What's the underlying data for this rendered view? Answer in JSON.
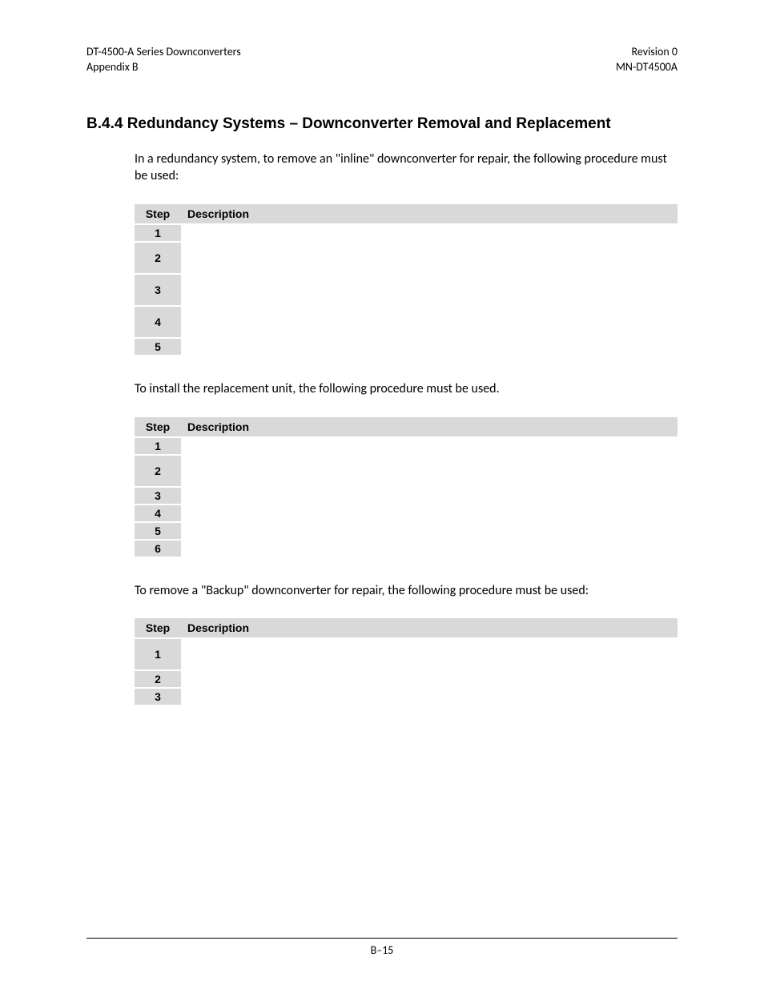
{
  "header": {
    "left_line1": "DT-4500-A Series Downconverters",
    "left_line2": "Appendix B",
    "right_line1": "Revision 0",
    "right_line2": "MN-DT4500A"
  },
  "section": {
    "number": "B.4.4",
    "title": "Redundancy Systems – Downconverter Removal and Replacement"
  },
  "para1": "In a redundancy system, to remove an \"inline\" downconverter for repair, the following procedure must be used:",
  "para2": "To install the replacement unit, the following procedure must be used.",
  "para3": "To remove a \"Backup\" downconverter for repair, the following procedure must be used:",
  "table_headers": {
    "step": "Step",
    "description": "Description"
  },
  "table1": {
    "rows": [
      {
        "step": "1",
        "height": "h-short"
      },
      {
        "step": "2",
        "height": "h-med"
      },
      {
        "step": "3",
        "height": "h-med"
      },
      {
        "step": "4",
        "height": "h-med"
      },
      {
        "step": "5",
        "height": "h-short"
      }
    ]
  },
  "table2": {
    "rows": [
      {
        "step": "1",
        "height": "h-short"
      },
      {
        "step": "2",
        "height": "h-med"
      },
      {
        "step": "3",
        "height": "h-short"
      },
      {
        "step": "4",
        "height": "h-short"
      },
      {
        "step": "5",
        "height": "h-short"
      },
      {
        "step": "6",
        "height": "h-short"
      }
    ]
  },
  "table3": {
    "rows": [
      {
        "step": "1",
        "height": "h-med"
      },
      {
        "step": "2",
        "height": "h-short"
      },
      {
        "step": "3",
        "height": "h-short"
      }
    ]
  },
  "footer": {
    "page_number": "B–15"
  },
  "colors": {
    "header_bg": "#d9d9d9",
    "page_bg": "#ffffff",
    "text": "#000000"
  }
}
